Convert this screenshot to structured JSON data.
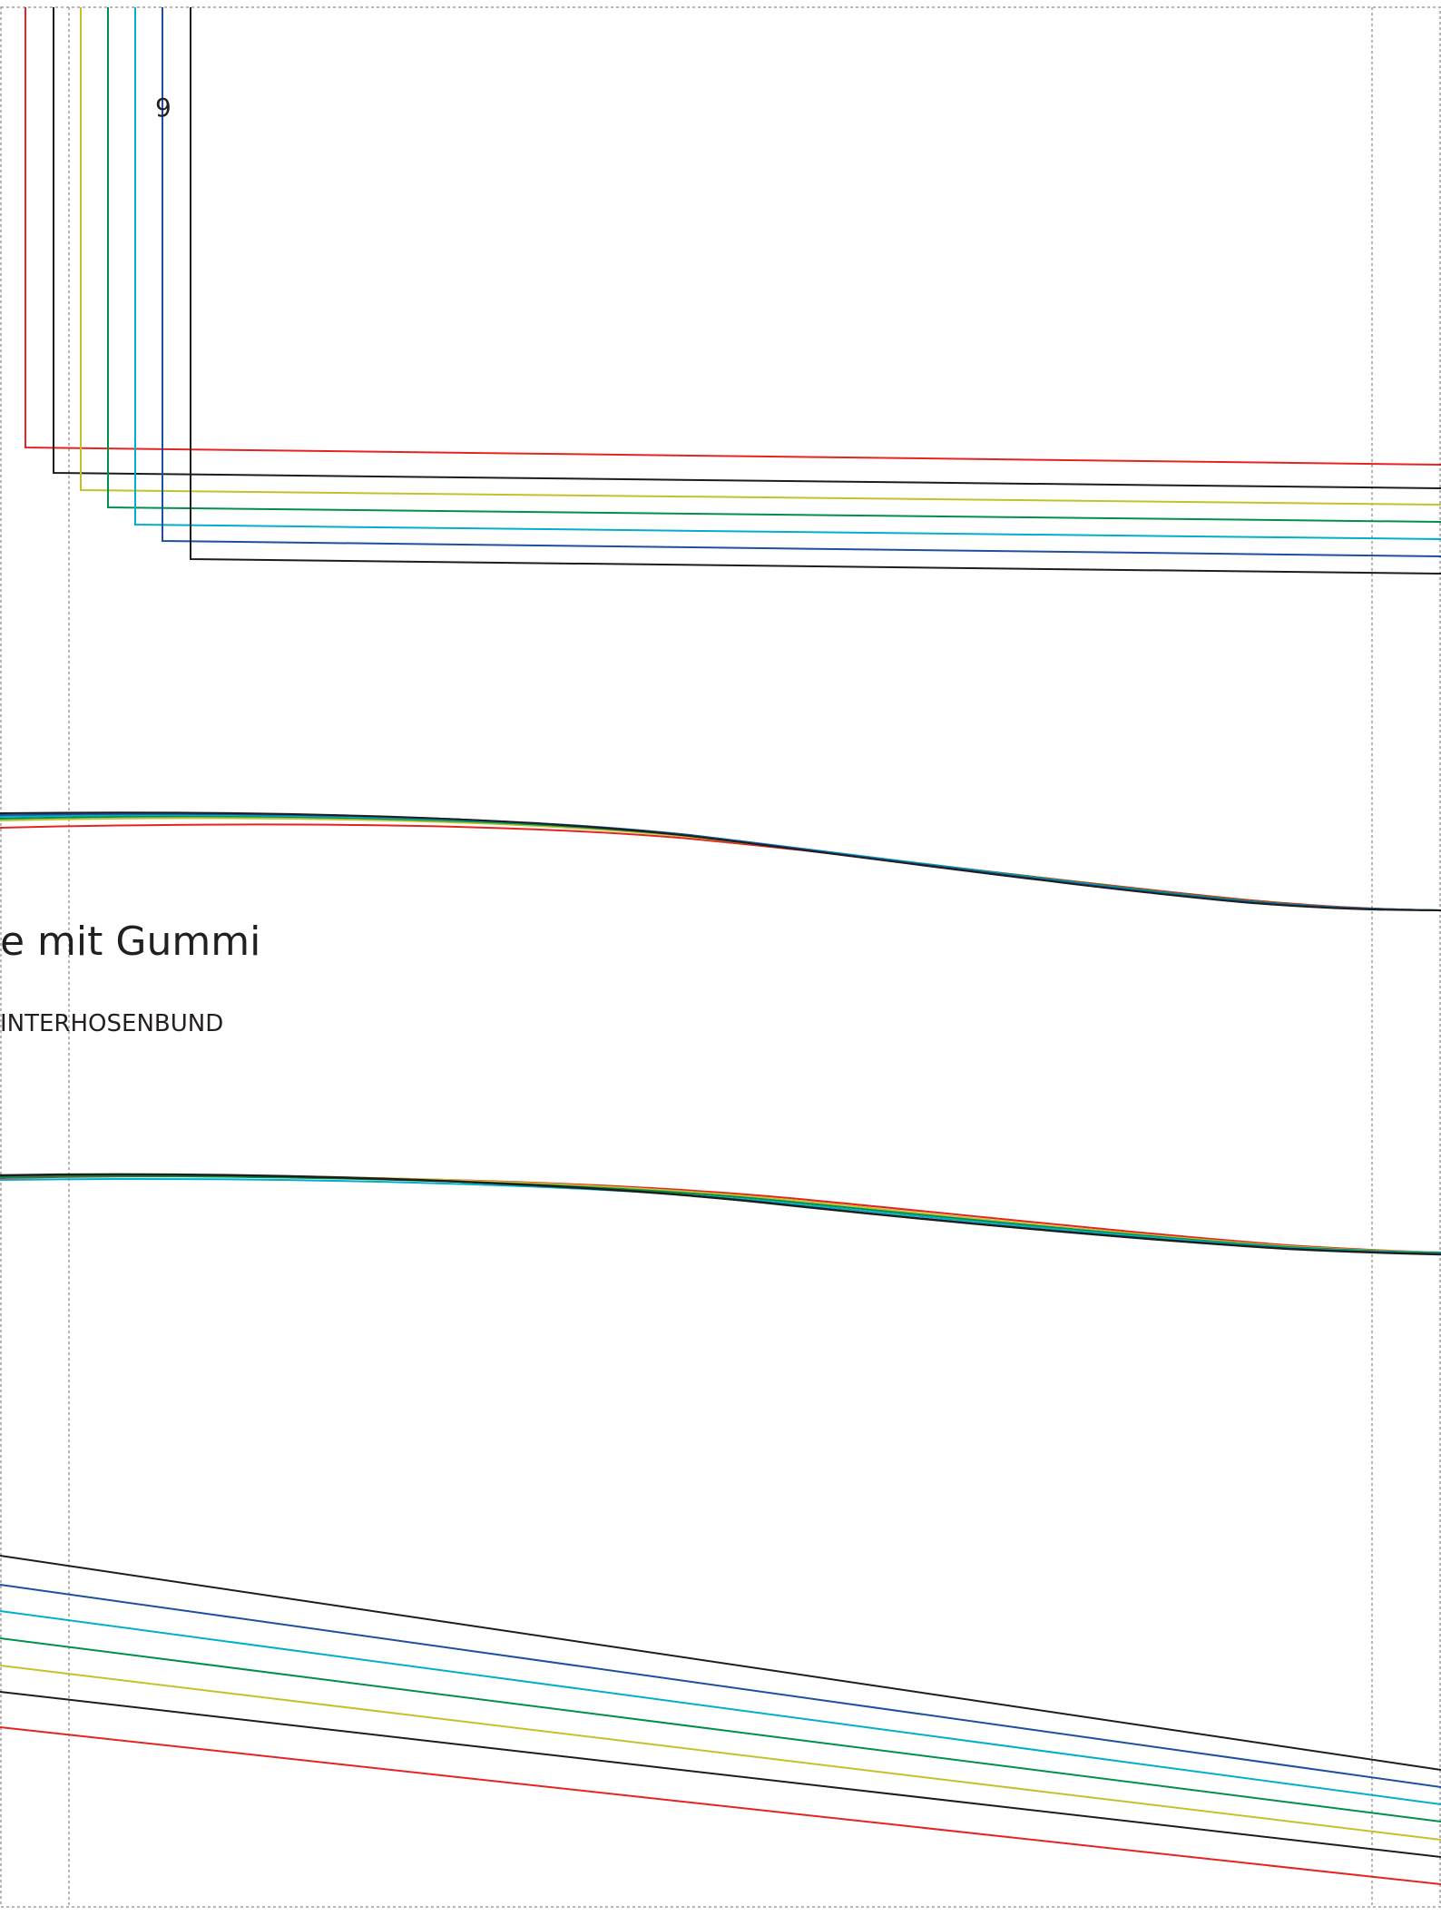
{
  "page": {
    "number_label": "9"
  },
  "title": "e mit Gummi",
  "subtitle": "INTERHOSENBUND",
  "size_colors": [
    "#e52421",
    "#1d1d1b",
    "#c5c12d",
    "#00904a",
    "#00afca",
    "#1e4fa0",
    "#1d1d1b"
  ],
  "guide_color": "#9d9d9c"
}
